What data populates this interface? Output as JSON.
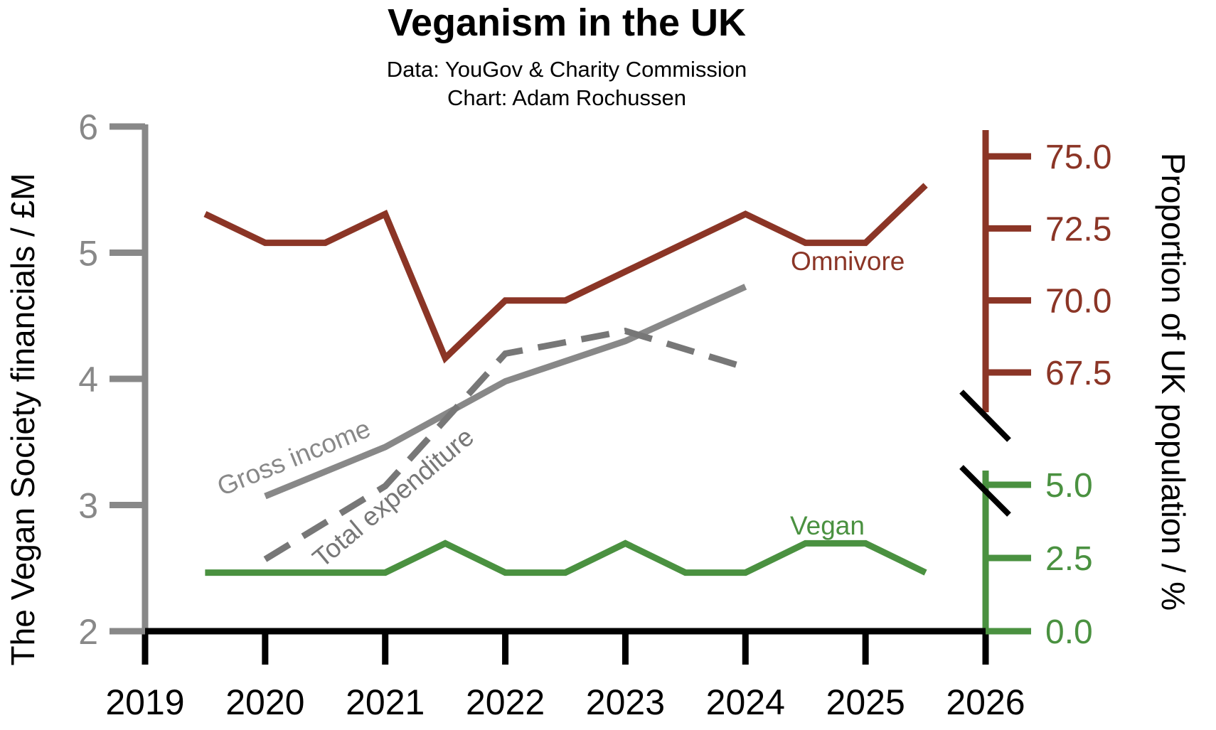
{
  "chart_data": {
    "type": "line",
    "title": "Veganism in the UK",
    "subtitle_lines": [
      "Data: YouGov & Charity Commission",
      "Chart: Adam Rochussen"
    ],
    "x_axis": {
      "label": "",
      "ticks": [
        2019,
        2020,
        2021,
        2022,
        2023,
        2024,
        2025,
        2026
      ],
      "tick_labels": [
        "2019",
        "2020",
        "2021",
        "2022",
        "2023",
        "2024",
        "2025",
        "2026"
      ],
      "range": [
        2019,
        2026
      ]
    },
    "y_left": {
      "label": "The Vegan Society financials / £M",
      "range": [
        2,
        6
      ],
      "ticks": [
        2,
        3,
        4,
        5,
        6
      ],
      "tick_labels": [
        "2",
        "3",
        "4",
        "5",
        "6"
      ]
    },
    "y_right_upper": {
      "range": [
        66.0,
        76.0
      ],
      "ticks": [
        67.5,
        70.0,
        72.5,
        75.0
      ],
      "tick_labels": [
        "67.5",
        "70.0",
        "72.5",
        "75.0"
      ]
    },
    "y_right_lower": {
      "range": [
        0.0,
        5.0
      ],
      "ticks": [
        0.0,
        2.5,
        5.0
      ],
      "tick_labels": [
        "0.0",
        "2.5",
        "5.0"
      ]
    },
    "y_right_label": "Proportion of UK population / %",
    "series": [
      {
        "name": "Gross income",
        "axis": "left",
        "style": "solid",
        "color": "#888888",
        "label": "Gross income",
        "x": [
          2020,
          2021,
          2022,
          2023,
          2024
        ],
        "values": [
          3.07,
          3.46,
          3.98,
          4.3,
          4.73
        ]
      },
      {
        "name": "Total expenditure",
        "axis": "left",
        "style": "dashed",
        "color": "#777777",
        "label": "Total expenditure",
        "x": [
          2020,
          2021,
          2022,
          2023,
          2024
        ],
        "values": [
          2.57,
          3.15,
          4.2,
          4.38,
          4.09
        ]
      },
      {
        "name": "Omnivore",
        "axis": "right_upper",
        "style": "solid",
        "color": "#8b3526",
        "label": "Omnivore",
        "x": [
          2019.5,
          2020,
          2020.5,
          2021,
          2021.5,
          2022,
          2022.5,
          2023,
          2023.5,
          2024,
          2024.5,
          2025,
          2025.5
        ],
        "values": [
          73.0,
          72.0,
          72.0,
          73.0,
          68.0,
          70.0,
          70.0,
          71.0,
          72.0,
          73.0,
          72.0,
          72.0,
          74.0
        ]
      },
      {
        "name": "Vegan",
        "axis": "right_lower",
        "style": "solid",
        "color": "#4a9140",
        "label": "Vegan",
        "x": [
          2019.5,
          2020,
          2020.5,
          2021,
          2021.5,
          2022,
          2022.5,
          2023,
          2023.5,
          2024,
          2024.5,
          2025,
          2025.5
        ],
        "values": [
          2.0,
          2.0,
          2.0,
          2.0,
          3.0,
          2.0,
          2.0,
          3.0,
          2.0,
          2.0,
          3.0,
          3.0,
          2.0
        ]
      }
    ]
  },
  "colors": {
    "left_axis": "#888888",
    "omnivore": "#8b3526",
    "vegan": "#4a9140",
    "x_axis": "#000000"
  }
}
